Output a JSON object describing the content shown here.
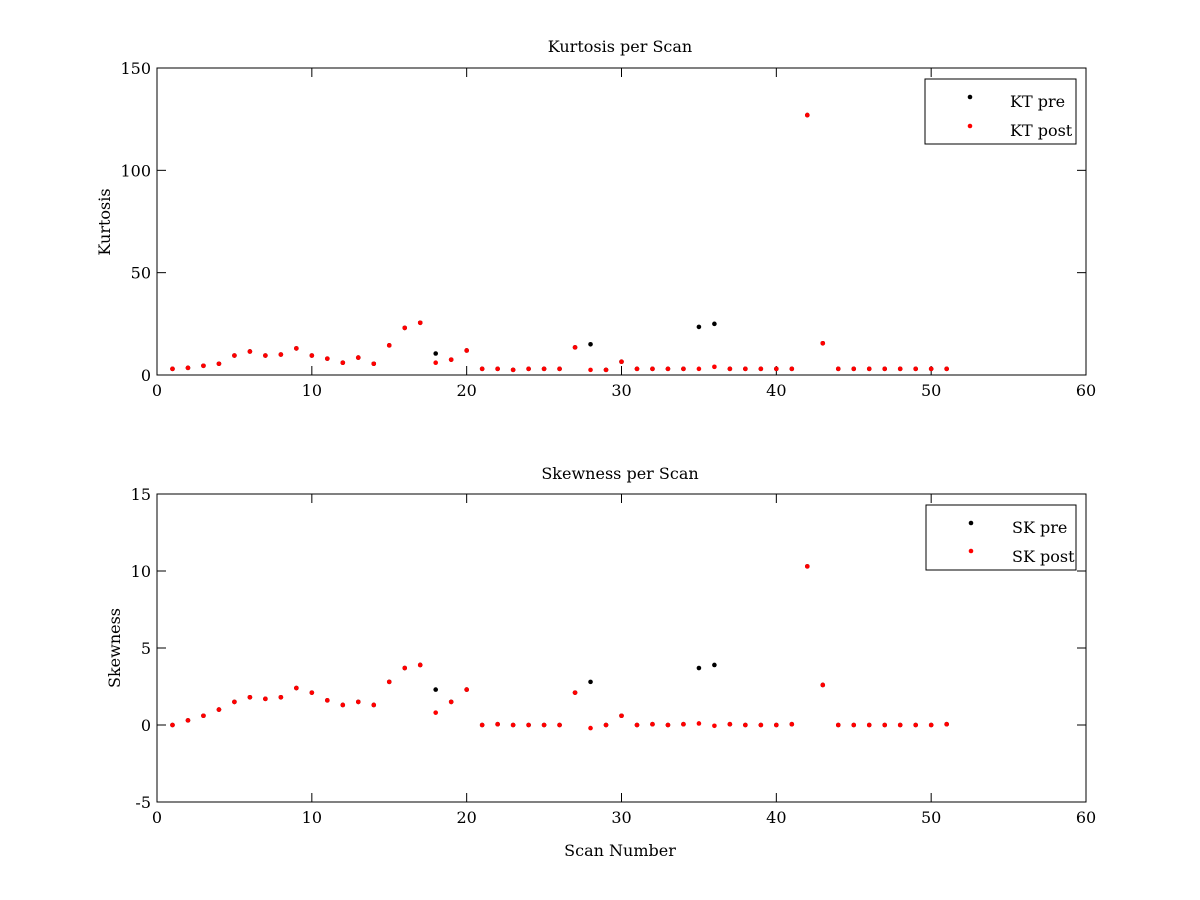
{
  "chart_data": [
    {
      "type": "scatter",
      "title": "Kurtosis per Scan",
      "xlabel": "",
      "ylabel": "Kurtosis",
      "xlim": [
        0,
        60
      ],
      "ylim": [
        0,
        150
      ],
      "xticks": [
        0,
        10,
        20,
        30,
        40,
        50,
        60
      ],
      "yticks": [
        0,
        50,
        100,
        150
      ],
      "grid": false,
      "legend_position": "top-right",
      "series": [
        {
          "name": "KT pre",
          "color": "#000000",
          "marker": "dot",
          "x": [
            1,
            2,
            3,
            4,
            5,
            6,
            7,
            8,
            9,
            10,
            11,
            12,
            13,
            14,
            15,
            16,
            17,
            18,
            19,
            20,
            21,
            22,
            23,
            24,
            25,
            26,
            27,
            28,
            29,
            30,
            31,
            32,
            33,
            34,
            35,
            36,
            37,
            38,
            39,
            40,
            41,
            42,
            43,
            44,
            45,
            46,
            47,
            48,
            49,
            50,
            51
          ],
          "y": [
            3,
            3.5,
            4.5,
            5.5,
            9.5,
            11.5,
            9.5,
            10,
            13,
            9.5,
            8,
            6,
            8.5,
            5.5,
            14.5,
            23,
            25.5,
            10.5,
            7.5,
            12,
            3,
            3,
            2.5,
            3,
            3,
            3,
            13.5,
            15,
            2.5,
            6.5,
            3,
            3,
            3,
            3,
            23.5,
            25,
            3,
            3,
            3,
            3,
            3,
            127,
            15.5,
            3,
            3,
            3,
            3,
            3,
            3,
            3,
            3
          ]
        },
        {
          "name": "KT post",
          "color": "#ff0000",
          "marker": "dot",
          "x": [
            1,
            2,
            3,
            4,
            5,
            6,
            7,
            8,
            9,
            10,
            11,
            12,
            13,
            14,
            15,
            16,
            17,
            18,
            19,
            20,
            21,
            22,
            23,
            24,
            25,
            26,
            27,
            28,
            29,
            30,
            31,
            32,
            33,
            34,
            35,
            36,
            37,
            38,
            39,
            40,
            41,
            42,
            43,
            44,
            45,
            46,
            47,
            48,
            49,
            50,
            51
          ],
          "y": [
            3,
            3.5,
            4.5,
            5.5,
            9.5,
            11.5,
            9.5,
            10,
            13,
            9.5,
            8,
            6,
            8.5,
            5.5,
            14.5,
            23,
            25.5,
            6,
            7.5,
            12,
            3,
            3,
            2.5,
            3,
            3,
            3,
            13.5,
            2.5,
            2.5,
            6.5,
            3,
            3,
            3,
            3,
            3,
            4,
            3,
            3,
            3,
            3,
            3,
            127,
            15.5,
            3,
            3,
            3,
            3,
            3,
            3,
            3,
            3
          ]
        }
      ]
    },
    {
      "type": "scatter",
      "title": "Skewness per Scan",
      "xlabel": "Scan Number",
      "ylabel": "Skewness",
      "xlim": [
        0,
        60
      ],
      "ylim": [
        -5,
        15
      ],
      "xticks": [
        0,
        10,
        20,
        30,
        40,
        50,
        60
      ],
      "yticks": [
        -5,
        0,
        5,
        10,
        15
      ],
      "grid": false,
      "legend_position": "top-right",
      "series": [
        {
          "name": "SK pre",
          "color": "#000000",
          "marker": "dot",
          "x": [
            1,
            2,
            3,
            4,
            5,
            6,
            7,
            8,
            9,
            10,
            11,
            12,
            13,
            14,
            15,
            16,
            17,
            18,
            19,
            20,
            21,
            22,
            23,
            24,
            25,
            26,
            27,
            28,
            29,
            30,
            31,
            32,
            33,
            34,
            35,
            36,
            37,
            38,
            39,
            40,
            41,
            42,
            43,
            44,
            45,
            46,
            47,
            48,
            49,
            50,
            51
          ],
          "y": [
            0,
            0.3,
            0.6,
            1,
            1.5,
            1.8,
            1.7,
            1.8,
            2.4,
            2.1,
            1.6,
            1.3,
            1.5,
            1.3,
            2.8,
            3.7,
            3.9,
            2.3,
            1.5,
            2.3,
            0,
            0.05,
            0,
            0,
            0,
            0,
            2.1,
            2.8,
            0,
            0.6,
            0,
            0.05,
            0,
            0.05,
            3.7,
            3.9,
            0.05,
            0,
            0,
            0,
            0.05,
            10.3,
            2.6,
            0,
            0,
            0,
            0,
            0,
            0,
            0,
            0.05
          ]
        },
        {
          "name": "SK post",
          "color": "#ff0000",
          "marker": "dot",
          "x": [
            1,
            2,
            3,
            4,
            5,
            6,
            7,
            8,
            9,
            10,
            11,
            12,
            13,
            14,
            15,
            16,
            17,
            18,
            19,
            20,
            21,
            22,
            23,
            24,
            25,
            26,
            27,
            28,
            29,
            30,
            31,
            32,
            33,
            34,
            35,
            36,
            37,
            38,
            39,
            40,
            41,
            42,
            43,
            44,
            45,
            46,
            47,
            48,
            49,
            50,
            51
          ],
          "y": [
            0,
            0.3,
            0.6,
            1,
            1.5,
            1.8,
            1.7,
            1.8,
            2.4,
            2.1,
            1.6,
            1.3,
            1.5,
            1.3,
            2.8,
            3.7,
            3.9,
            0.8,
            1.5,
            2.3,
            0,
            0.05,
            0,
            0,
            0,
            0,
            2.1,
            -0.2,
            0,
            0.6,
            0,
            0.05,
            0,
            0.05,
            0.1,
            -0.05,
            0.05,
            0,
            0,
            0,
            0.05,
            10.3,
            2.6,
            0,
            0,
            0,
            0,
            0,
            0,
            0,
            0.05
          ]
        }
      ]
    }
  ]
}
